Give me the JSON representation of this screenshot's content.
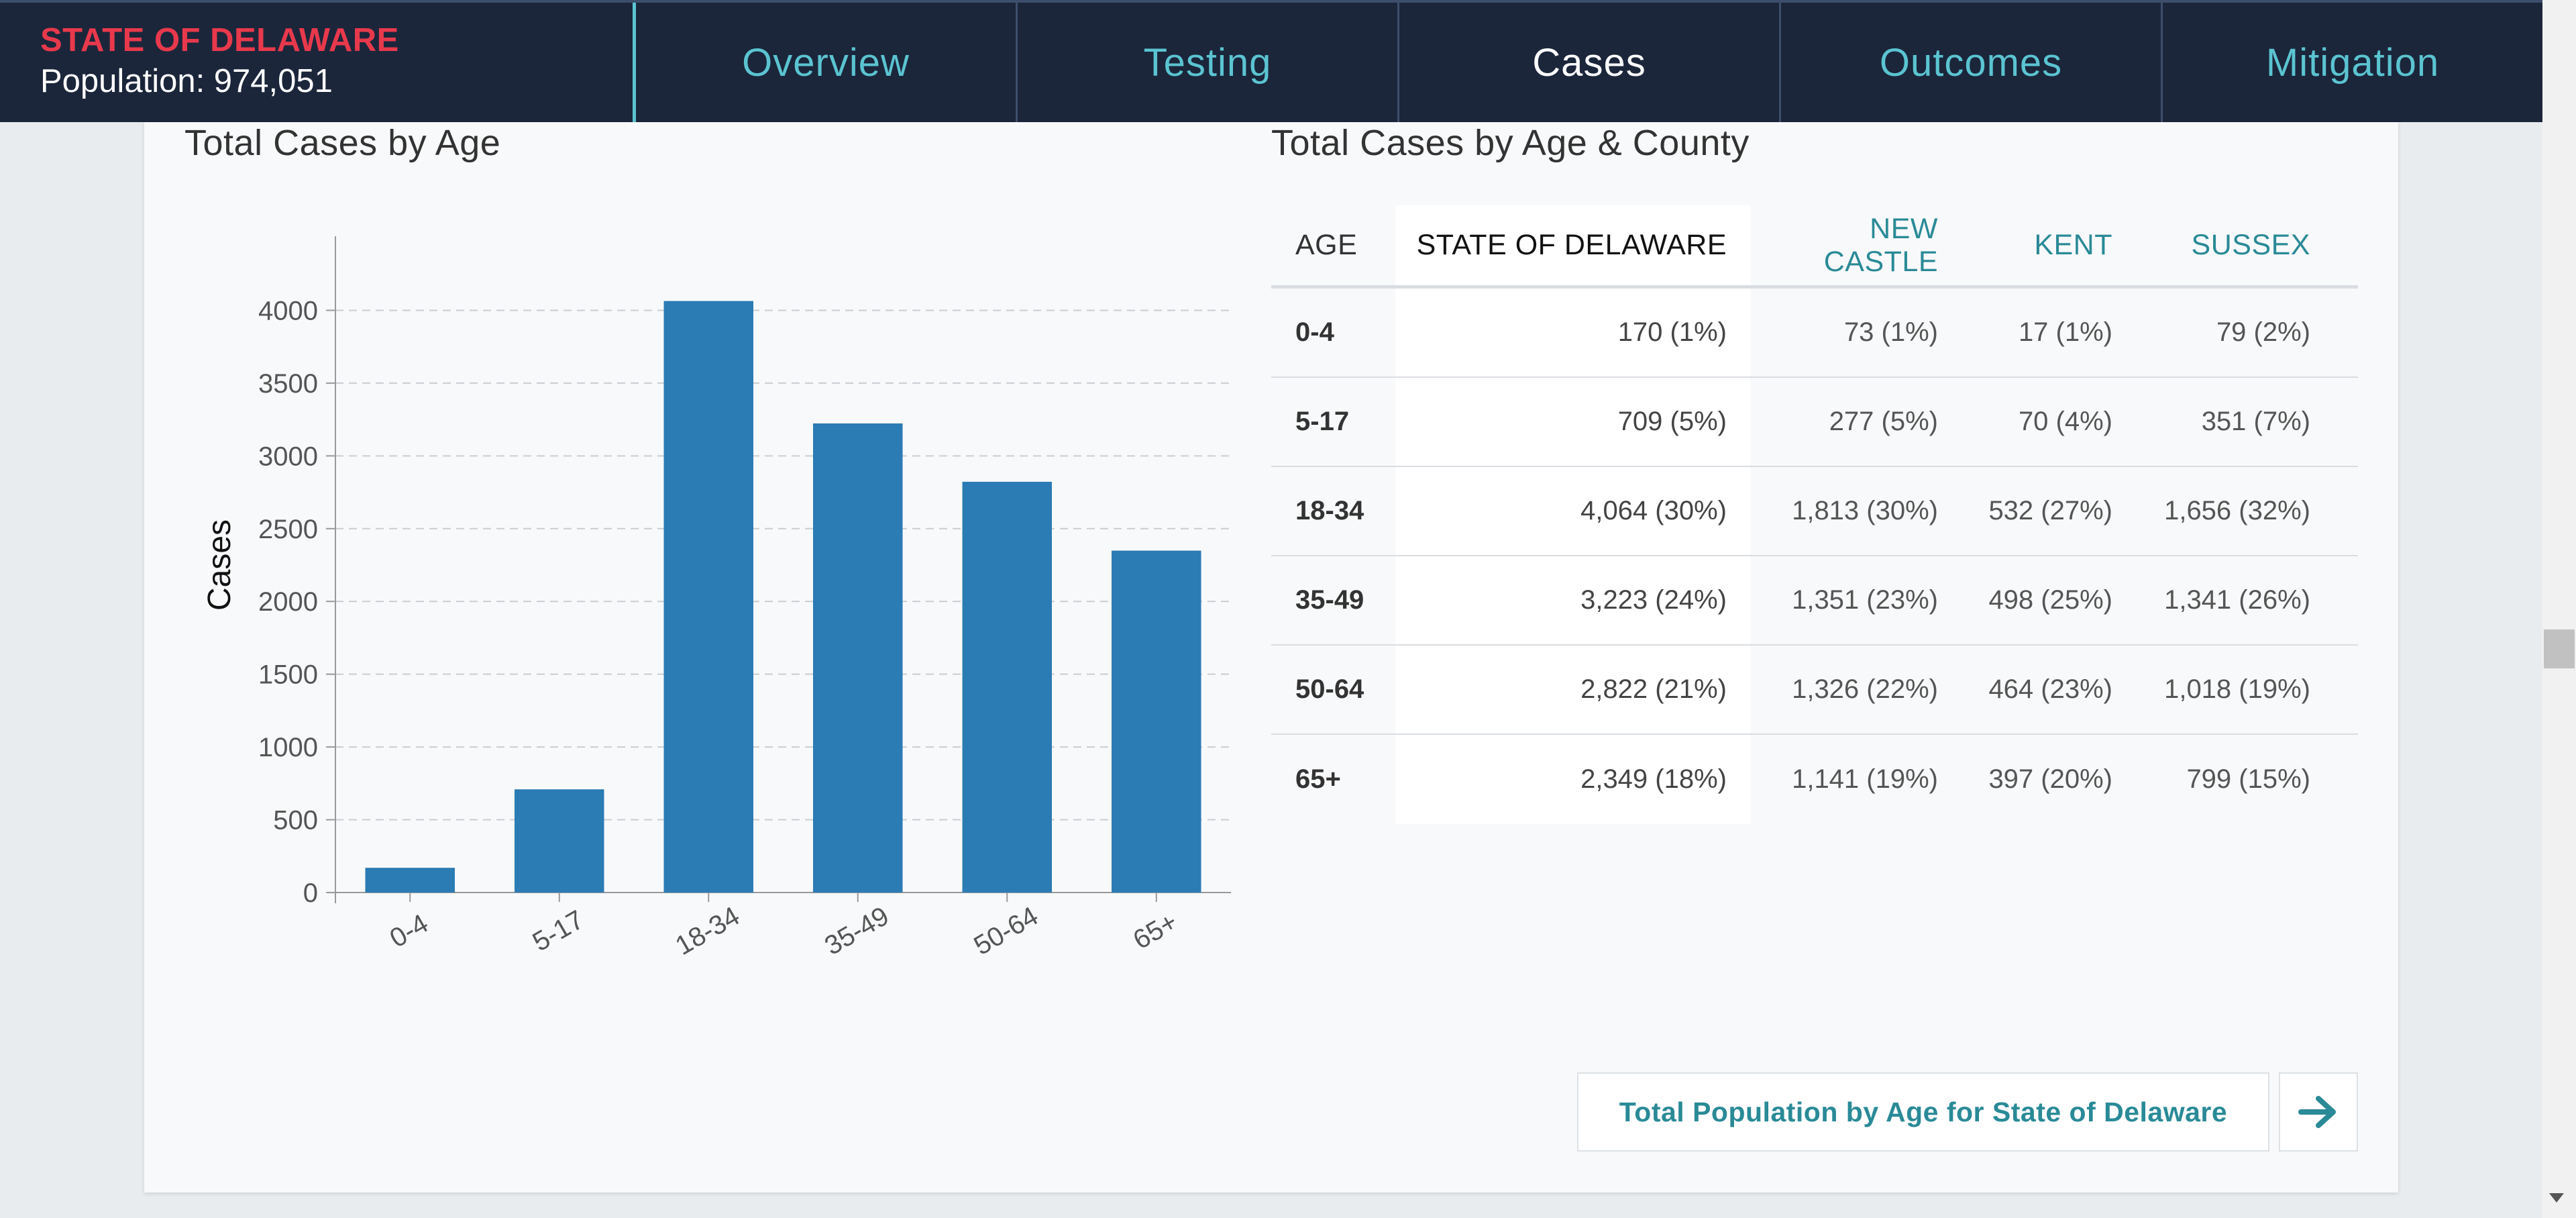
{
  "header": {
    "state_name": "STATE OF DELAWARE",
    "population": "Population: 974,051",
    "tabs": [
      {
        "label": "Overview",
        "active": false
      },
      {
        "label": "Testing",
        "active": false
      },
      {
        "label": "Cases",
        "active": true
      },
      {
        "label": "Outcomes",
        "active": false
      },
      {
        "label": "Mitigation",
        "active": false
      }
    ]
  },
  "chart_section": {
    "title": "Total Cases by Age"
  },
  "chart_data": {
    "type": "bar",
    "categories": [
      "0-4",
      "5-17",
      "18-34",
      "35-49",
      "50-64",
      "65+"
    ],
    "values": [
      170,
      709,
      4064,
      3223,
      2822,
      2349
    ],
    "ylabel": "Cases",
    "ylim": [
      0,
      4500
    ],
    "yticks": [
      0,
      500,
      1000,
      1500,
      2000,
      2500,
      3000,
      3500,
      4000
    ],
    "grid": "horizontal-dashed",
    "bar_color": "#2b7bb5"
  },
  "table_section": {
    "title": "Total Cases by Age & County",
    "columns": [
      "AGE",
      "STATE OF DELAWARE",
      "NEW CASTLE",
      "KENT",
      "SUSSEX"
    ],
    "rows": [
      {
        "age": "0-4",
        "state": "170 (1%)",
        "new_castle": "73 (1%)",
        "kent": "17 (1%)",
        "sussex": "79 (2%)"
      },
      {
        "age": "5-17",
        "state": "709 (5%)",
        "new_castle": "277 (5%)",
        "kent": "70 (4%)",
        "sussex": "351 (7%)"
      },
      {
        "age": "18-34",
        "state": "4,064 (30%)",
        "new_castle": "1,813 (30%)",
        "kent": "532 (27%)",
        "sussex": "1,656 (32%)"
      },
      {
        "age": "35-49",
        "state": "3,223 (24%)",
        "new_castle": "1,351 (23%)",
        "kent": "498 (25%)",
        "sussex": "1,341 (26%)"
      },
      {
        "age": "50-64",
        "state": "2,822 (21%)",
        "new_castle": "1,326 (22%)",
        "kent": "464 (23%)",
        "sussex": "1,018 (19%)"
      },
      {
        "age": "65+",
        "state": "2,349 (18%)",
        "new_castle": "1,141 (19%)",
        "kent": "397 (20%)",
        "sussex": "799 (15%)"
      }
    ]
  },
  "footer": {
    "population_link": "Total Population by Age for State of Delaware",
    "arrow_icon": "arrow-right-icon",
    "accent_color": "#2a8a97"
  }
}
